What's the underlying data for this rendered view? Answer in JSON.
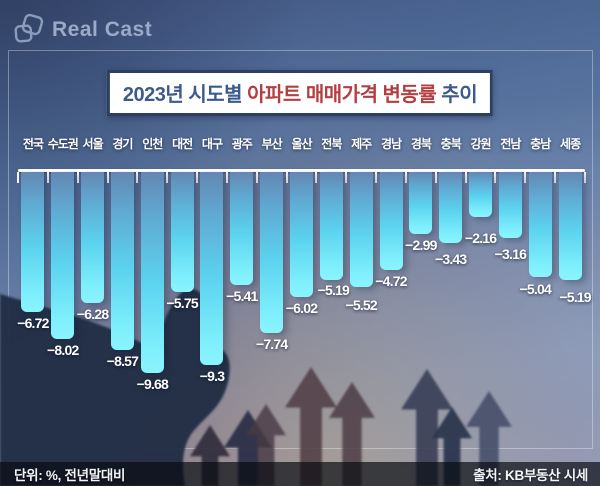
{
  "logo": {
    "brand": "Real Cast"
  },
  "title": {
    "part1": "2023년 시도별 ",
    "part2_red": "아파트 매매가격 변동률",
    "part3": " 추이"
  },
  "chart_data": {
    "type": "bar",
    "title": "2023년 시도별 아파트 매매가격 변동률 추이",
    "unit": "%",
    "note": "전년말대비",
    "orientation": "vertical-negative",
    "categories": [
      "전국",
      "수도권",
      "서울",
      "경기",
      "인천",
      "대전",
      "대구",
      "광주",
      "부산",
      "울산",
      "전북",
      "제주",
      "경남",
      "경북",
      "충북",
      "강원",
      "전남",
      "충남",
      "세종"
    ],
    "values": [
      -6.72,
      -8.02,
      -6.28,
      -8.57,
      -9.68,
      -5.75,
      -9.3,
      -5.41,
      -7.74,
      -6.02,
      -5.19,
      -5.52,
      -4.72,
      -2.99,
      -3.43,
      -2.16,
      -3.16,
      -5.04,
      -5.19
    ],
    "ylim": [
      -10,
      0
    ],
    "axis_color": "#ffffff",
    "bar_colors": {
      "top": "#6487b2",
      "mid": "#5cd3ef",
      "bottom": "#8bf4fd"
    },
    "grid": false,
    "legend": null
  },
  "footer": {
    "unit_label": "단위: %, 전년말대비",
    "source_label": "출처: KB부동산 시세"
  },
  "colors": {
    "title_navy": "#3d5a8c",
    "title_red": "#b43f42",
    "title_border": "#2c3f63",
    "value_text": "#ffffff"
  }
}
